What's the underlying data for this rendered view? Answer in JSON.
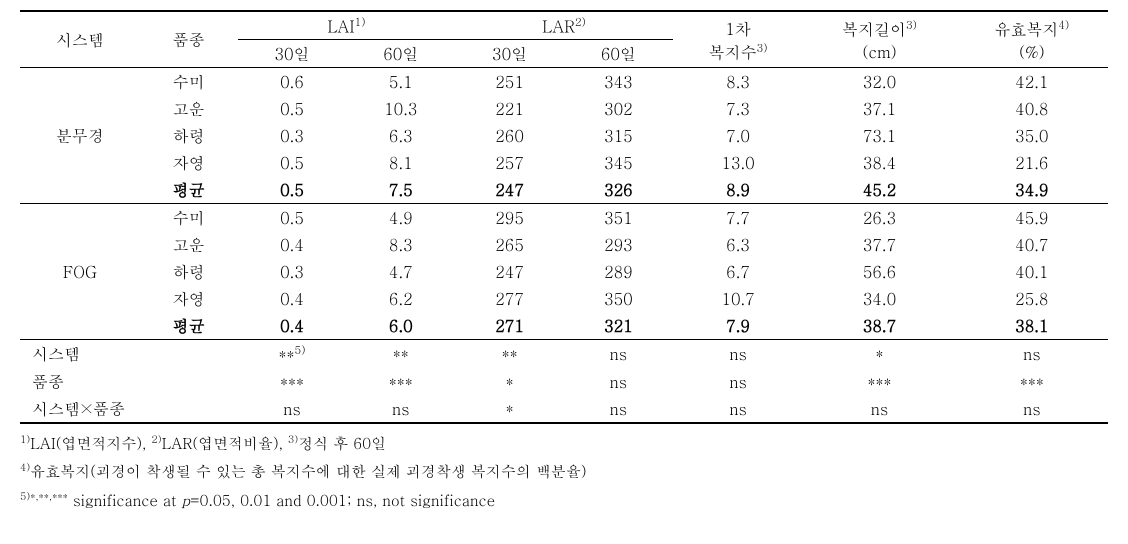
{
  "header": {
    "c1": "시스템",
    "c2": "품종",
    "lai": "LAI",
    "lai_sup": "1)",
    "lar": "LAR",
    "lar_sup": "2)",
    "bokji1_a": "1차",
    "bokji1_b": "복지수",
    "bokji1_sup": "3)",
    "bokjilen_a": "복지길이",
    "bokjilen_sup": "3)",
    "bokjilen_b": "(cm)",
    "yuhyo_a": "유효복지",
    "yuhyo_sup": "4)",
    "yuhyo_b": "(%)",
    "d30": "30일",
    "d60": "60일"
  },
  "groups": [
    {
      "sys": "분무경",
      "rows": [
        {
          "v": "수미",
          "lai30": "0.6",
          "lai60": "5.1",
          "lar30": "251",
          "lar60": "343",
          "b1": "8.3",
          "bl": "32.0",
          "yb": "42.1"
        },
        {
          "v": "고운",
          "lai30": "0.5",
          "lai60": "10.3",
          "lar30": "221",
          "lar60": "302",
          "b1": "7.3",
          "bl": "37.1",
          "yb": "40.8"
        },
        {
          "v": "하령",
          "lai30": "0.3",
          "lai60": "6.3",
          "lar30": "260",
          "lar60": "315",
          "b1": "7.0",
          "bl": "73.1",
          "yb": "35.0"
        },
        {
          "v": "자영",
          "lai30": "0.5",
          "lai60": "8.1",
          "lar30": "257",
          "lar60": "345",
          "b1": "13.0",
          "bl": "38.4",
          "yb": "21.6"
        },
        {
          "v": "평균",
          "lai30": "0.5",
          "lai60": "7.5",
          "lar30": "247",
          "lar60": "326",
          "b1": "8.9",
          "bl": "45.2",
          "yb": "34.9",
          "bold": true
        }
      ]
    },
    {
      "sys": "FOG",
      "rows": [
        {
          "v": "수미",
          "lai30": "0.5",
          "lai60": "4.9",
          "lar30": "295",
          "lar60": "351",
          "b1": "7.7",
          "bl": "26.3",
          "yb": "45.9"
        },
        {
          "v": "고운",
          "lai30": "0.4",
          "lai60": "8.3",
          "lar30": "265",
          "lar60": "293",
          "b1": "6.3",
          "bl": "37.7",
          "yb": "40.7"
        },
        {
          "v": "하령",
          "lai30": "0.3",
          "lai60": "4.7",
          "lar30": "247",
          "lar60": "289",
          "b1": "6.7",
          "bl": "56.6",
          "yb": "40.1"
        },
        {
          "v": "자영",
          "lai30": "0.4",
          "lai60": "6.2",
          "lar30": "277",
          "lar60": "350",
          "b1": "10.7",
          "bl": "34.0",
          "yb": "25.8"
        },
        {
          "v": "평균",
          "lai30": "0.4",
          "lai60": "6.0",
          "lar30": "271",
          "lar60": "321",
          "b1": "7.9",
          "bl": "38.7",
          "yb": "38.1",
          "bold": true
        }
      ]
    }
  ],
  "stats": [
    {
      "label": "시스템",
      "lai30": "**",
      "lai30_sup": "5)",
      "lai60": "**",
      "lar30": "**",
      "lar60": "ns",
      "b1": "ns",
      "bl": "*",
      "yb": "ns"
    },
    {
      "label": "품종",
      "lai30": "***",
      "lai60": "***",
      "lar30": "*",
      "lar60": "ns",
      "b1": "ns",
      "bl": "***",
      "yb": "***"
    },
    {
      "label": "시스템×품종",
      "lai30": "ns",
      "lai60": "ns",
      "lar30": "*",
      "lar60": "ns",
      "b1": "ns",
      "bl": "ns",
      "yb": "ns"
    }
  ],
  "footnotes": {
    "f1_sup": "1)",
    "f1_a": "LAI(엽면적지수), ",
    "f2_sup": "2)",
    "f2_a": "LAR(엽면적비율), ",
    "f3_sup": "3)",
    "f3_a": "정식 후 60일",
    "f4_sup": "4)",
    "f4_a": "유효복지(괴경이 착생될 수 있는 총 복지수에 대한 실제 괴경착생 복지수의 백분율)",
    "f5_sup": "5)*,**,***",
    "f5_a": " significance at ",
    "f5_p": "p",
    "f5_b": "=0.05, 0.01 and 0.001; ns, not significance"
  }
}
